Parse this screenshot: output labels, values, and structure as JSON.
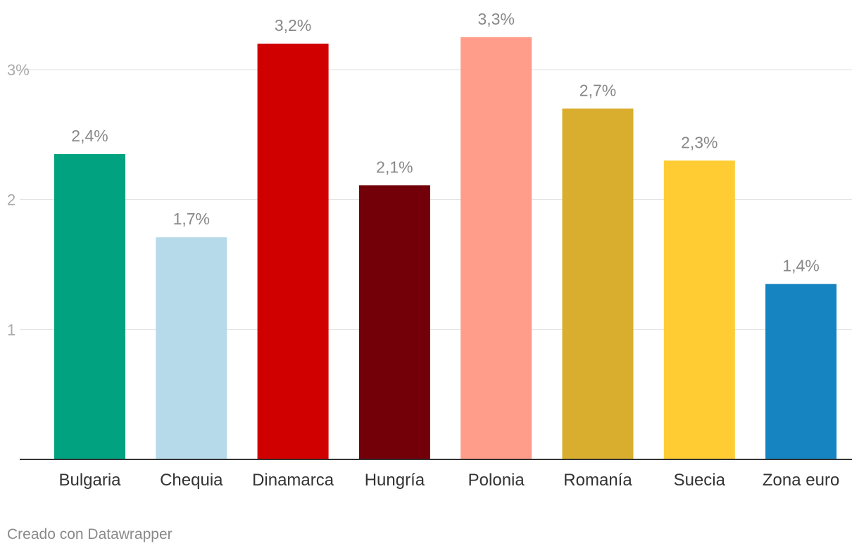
{
  "chart_data": {
    "type": "bar",
    "categories": [
      "Bulgaria",
      "Chequia",
      "Dinamarca",
      "Hungría",
      "Polonia",
      "Romanía",
      "Suecia",
      "Zona euro"
    ],
    "values": [
      2.35,
      1.71,
      3.2,
      2.11,
      3.25,
      2.7,
      2.3,
      1.35
    ],
    "data_labels": [
      "2,4%",
      "1,7%",
      "3,2%",
      "2,1%",
      "3,3%",
      "2,7%",
      "2,3%",
      "1,4%"
    ],
    "colors": [
      "#00a27f",
      "#b7daea",
      "#d00000",
      "#730008",
      "#ff9c8a",
      "#d9ae2e",
      "#ffcc33",
      "#1584c1"
    ],
    "yticks": [
      1,
      2,
      3
    ],
    "ytick_labels": [
      "1",
      "2",
      "3%"
    ],
    "ylim": [
      0,
      3.36
    ],
    "grid": true,
    "title": "",
    "xlabel": "",
    "ylabel": ""
  },
  "footer": {
    "credit": "Creado con Datawrapper"
  }
}
